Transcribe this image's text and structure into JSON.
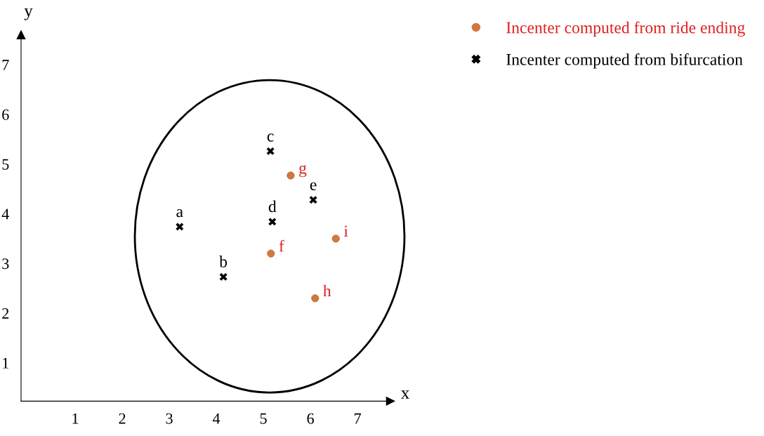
{
  "chart_data": {
    "type": "scatter",
    "xlabel": "x",
    "ylabel": "y",
    "xlim": [
      -0.15,
      7.7
    ],
    "ylim": [
      0.23,
      7.6
    ],
    "xticks": [
      1,
      2,
      3,
      4,
      5,
      6,
      7
    ],
    "yticks": [
      1,
      2,
      3,
      4,
      5,
      6,
      7
    ],
    "grid": false,
    "legend": "top right",
    "series": [
      {
        "name": "Incenter computed from ride ending",
        "color": "#d2783c",
        "marker": "circle",
        "x": [
          5.16,
          5.58,
          6.1,
          6.54
        ],
        "values": [
          3.2,
          4.77,
          2.3,
          3.5
        ]
      },
      {
        "name": "Incenter computed from bifurcation",
        "color": "#000000",
        "marker": "cross",
        "x": [
          3.22,
          4.15,
          5.15,
          5.19,
          6.06
        ],
        "values": [
          3.74,
          2.73,
          5.26,
          3.84,
          4.28
        ]
      }
    ],
    "annotations": [
      {
        "text": "a",
        "x": 3.22,
        "y": 3.74
      },
      {
        "text": "b",
        "x": 4.15,
        "y": 2.73
      },
      {
        "text": "c",
        "x": 5.15,
        "y": 5.26
      },
      {
        "text": "d",
        "x": 5.19,
        "y": 3.84
      },
      {
        "text": "e",
        "x": 6.06,
        "y": 4.28
      },
      {
        "text": "f",
        "x": 5.16,
        "y": 3.2
      },
      {
        "text": "g",
        "x": 5.58,
        "y": 4.77
      },
      {
        "text": "h",
        "x": 6.1,
        "y": 2.3
      },
      {
        "text": "i",
        "x": 6.54,
        "y": 3.5
      }
    ]
  }
}
